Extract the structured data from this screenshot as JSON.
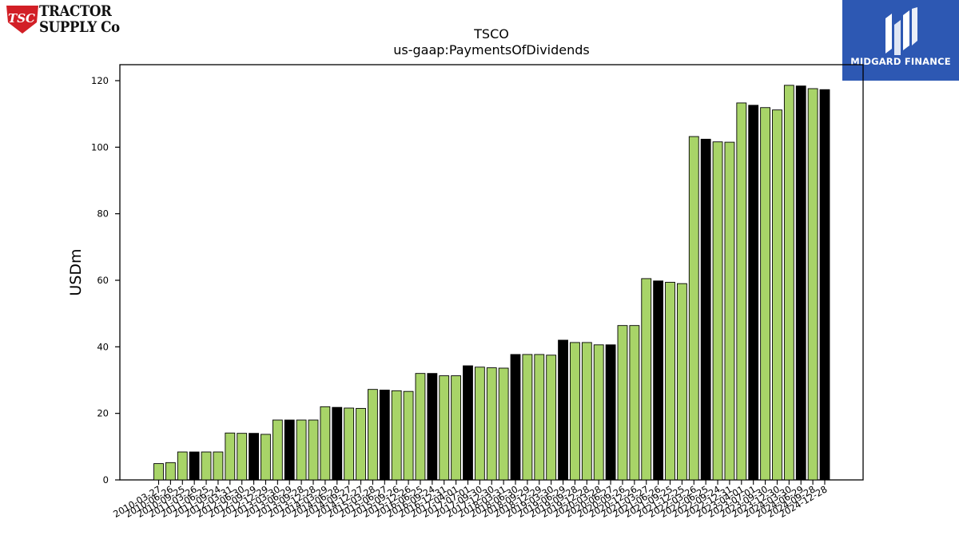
{
  "branding": {
    "left_logo": {
      "badge": "TSC",
      "line1": "TRACTOR",
      "line2": "SUPPLY Co"
    },
    "right_logo": {
      "name": "MIDGARD FINANCE",
      "bg_color": "#2d58b3"
    }
  },
  "chart_data": {
    "type": "bar",
    "title": "TSCO",
    "subtitle": "us-gaap:PaymentsOfDividends",
    "ylabel": "USDm",
    "xlabel": "",
    "ylim": [
      0,
      125
    ],
    "yticks": [
      0,
      20,
      40,
      60,
      80,
      100,
      120
    ],
    "grid": false,
    "colors": {
      "quarter": "#a8d468",
      "fiscal_year": "#000000"
    },
    "x_tick_labels": [
      "2010-03-27",
      "2010-06-26",
      "2010-09-25",
      "2011-03-26",
      "2011-06-25",
      "2011-09-24",
      "2012-03-31",
      "2012-06-30",
      "2012-09-29",
      "2012-12-29",
      "2013-03-30",
      "2013-06-29",
      "2013-09-28",
      "2013-12-28",
      "2014-03-29",
      "2014-06-28",
      "2014-09-27",
      "2014-12-27",
      "2015-03-28",
      "2015-06-27",
      "2015-09-26",
      "2015-12-26",
      "2016-06-25",
      "2016-09-24",
      "2016-12-31",
      "2017-04-01",
      "2017-07-01",
      "2017-09-30",
      "2017-12-30",
      "2018-03-31",
      "2018-06-30",
      "2018-09-29",
      "2018-12-29",
      "2019-03-30",
      "2019-06-29",
      "2019-09-28",
      "2019-12-28",
      "2020-03-28",
      "2020-06-27",
      "2020-09-26",
      "2020-12-26",
      "2021-03-27",
      "2021-06-26",
      "2021-09-25",
      "2021-12-25",
      "2022-03-26",
      "2022-06-25",
      "2022-09-24",
      "2022-12-31",
      "2023-04-01",
      "2023-07-01",
      "2023-09-30",
      "2023-12-30",
      "2024-03-30",
      "2024-06-29",
      "2024-09-28",
      "2024-12-28"
    ],
    "values": [
      4.9,
      5.2,
      8.4,
      8.4,
      8.4,
      8.4,
      14.1,
      14.0,
      14.0,
      13.7,
      18.0,
      18.0,
      18.0,
      18.0,
      22.0,
      21.8,
      21.6,
      21.5,
      27.2,
      27.0,
      26.8,
      26.6,
      32.0,
      32.0,
      31.3,
      31.3,
      34.3,
      33.9,
      33.7,
      33.6,
      37.7,
      37.7,
      37.7,
      37.5,
      42.0,
      41.3,
      41.3,
      40.6,
      40.6,
      46.4,
      46.4,
      60.5,
      59.8,
      59.4,
      59.0,
      103.2,
      102.4,
      101.6,
      101.5,
      113.3,
      112.6,
      111.9,
      111.2,
      118.6,
      118.4,
      117.6,
      117.3
    ],
    "is_fiscal_year": [
      false,
      false,
      false,
      true,
      false,
      false,
      false,
      false,
      true,
      false,
      false,
      true,
      false,
      false,
      false,
      true,
      false,
      false,
      false,
      true,
      false,
      false,
      false,
      true,
      false,
      false,
      true,
      false,
      false,
      false,
      true,
      false,
      false,
      false,
      true,
      false,
      false,
      false,
      true,
      false,
      false,
      false,
      true,
      false,
      false,
      false,
      true,
      false,
      false,
      false,
      true,
      false,
      false,
      false,
      true,
      false,
      true
    ]
  }
}
